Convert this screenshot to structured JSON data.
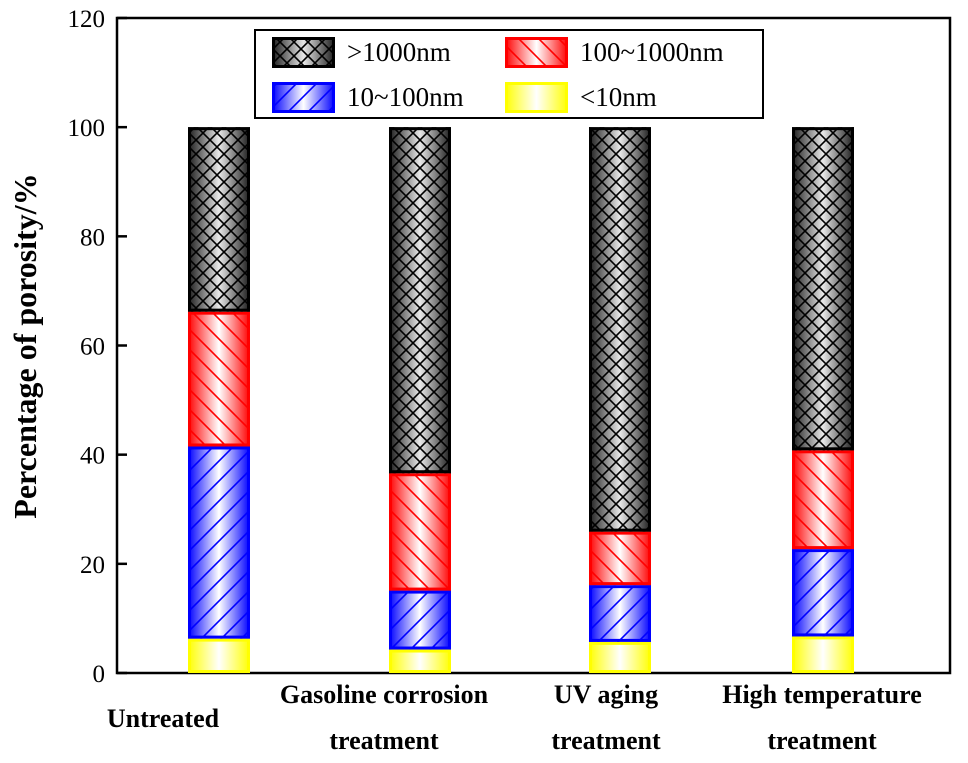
{
  "chart_data": {
    "type": "bar",
    "stacked": true,
    "title": "",
    "xlabel": "",
    "ylabel": "Percentage of porosity/%",
    "ylim": [
      0,
      120
    ],
    "yticks": [
      0,
      20,
      40,
      60,
      80,
      100,
      120
    ],
    "categories": [
      [
        "Untreated"
      ],
      [
        "Gasoline corrosion",
        "treatment"
      ],
      [
        "UV aging",
        "treatment"
      ],
      [
        "High temperature",
        "treatment"
      ]
    ],
    "series": [
      {
        "name": "<10nm",
        "values": [
          6.3,
          4.3,
          5.7,
          6.7
        ],
        "fill": "#ffff00",
        "stroke": "#ffff00",
        "pattern": "none"
      },
      {
        "name": "10~100nm",
        "values": [
          35.2,
          10.8,
          10.4,
          16.0
        ],
        "fill": "#0000ff",
        "stroke": "#0000ff",
        "pattern": "diag-right"
      },
      {
        "name": "100~1000nm",
        "values": [
          24.7,
          21.5,
          9.8,
          18.1
        ],
        "fill": "#ff0000",
        "stroke": "#ff0000",
        "pattern": "diag-left"
      },
      {
        "name": ">1000nm",
        "values": [
          33.8,
          63.4,
          74.1,
          59.2
        ],
        "fill": "#000000",
        "stroke": "#000000",
        "pattern": "cross"
      }
    ],
    "legend": {
      "position": "top-center",
      "order": [
        ">1000nm",
        "100~1000nm",
        "10~100nm",
        "<10nm"
      ]
    }
  }
}
